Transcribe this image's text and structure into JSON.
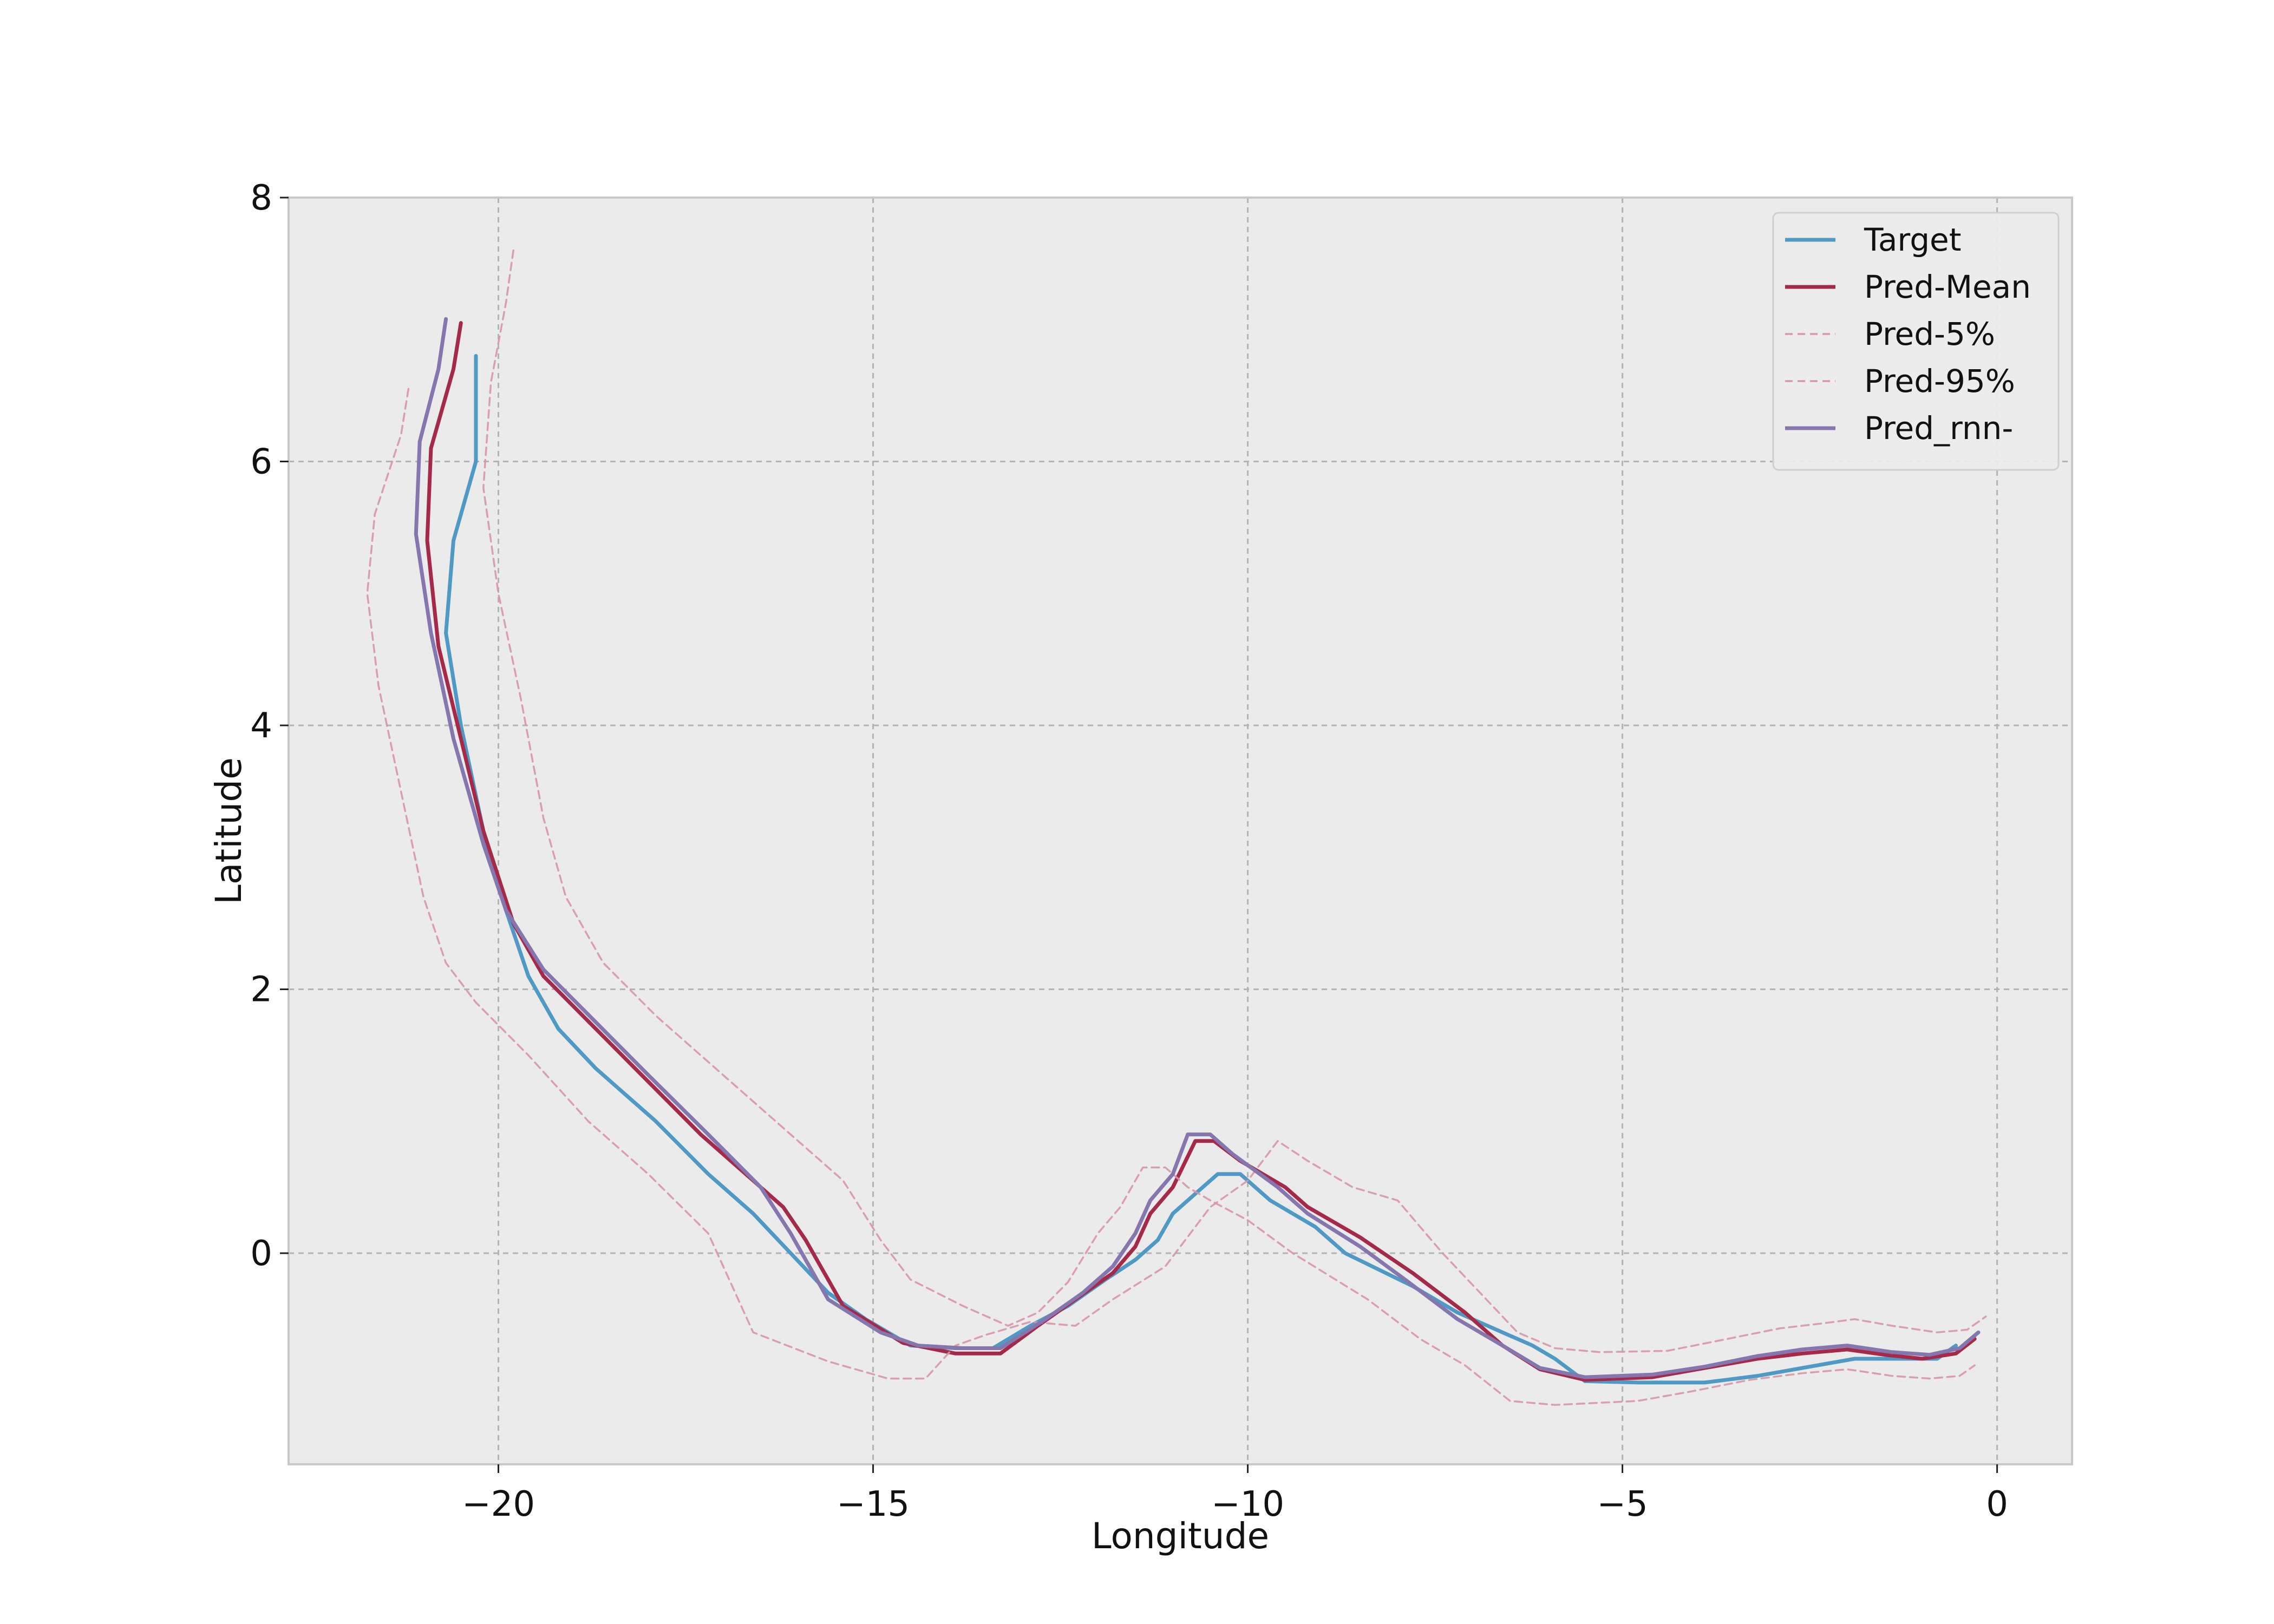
{
  "chart_data": {
    "type": "line",
    "title": "",
    "xlabel": "Longitude",
    "ylabel": "Latitude",
    "xlim": [
      -22.8,
      1.0
    ],
    "ylim": [
      -1.6,
      8.0
    ],
    "x_ticks": [
      -20,
      -15,
      -10,
      -5,
      0
    ],
    "x_tick_labels": [
      "−20",
      "−15",
      "−10",
      "−5",
      "0"
    ],
    "y_ticks": [
      0,
      2,
      4,
      6,
      8
    ],
    "y_tick_labels": [
      "0",
      "2",
      "4",
      "6",
      "8"
    ],
    "grid": true,
    "legend_position": "top-right",
    "background": "#ebebeb",
    "series": [
      {
        "name": "Target",
        "color": "#4f9ac4",
        "style": "solid",
        "points": [
          [
            -20.3,
            6.8
          ],
          [
            -20.3,
            6.0
          ],
          [
            -20.6,
            5.4
          ],
          [
            -20.7,
            4.7
          ],
          [
            -20.5,
            4.0
          ],
          [
            -20.2,
            3.2
          ],
          [
            -19.9,
            2.6
          ],
          [
            -19.6,
            2.1
          ],
          [
            -19.2,
            1.7
          ],
          [
            -18.7,
            1.4
          ],
          [
            -17.9,
            1.0
          ],
          [
            -17.2,
            0.6
          ],
          [
            -16.6,
            0.3
          ],
          [
            -16.1,
            0.0
          ],
          [
            -15.6,
            -0.3
          ],
          [
            -15.1,
            -0.5
          ],
          [
            -14.5,
            -0.7
          ],
          [
            -13.9,
            -0.72
          ],
          [
            -13.4,
            -0.72
          ],
          [
            -12.9,
            -0.55
          ],
          [
            -12.4,
            -0.4
          ],
          [
            -11.9,
            -0.2
          ],
          [
            -11.5,
            -0.05
          ],
          [
            -11.2,
            0.1
          ],
          [
            -11.0,
            0.3
          ],
          [
            -10.7,
            0.45
          ],
          [
            -10.4,
            0.6
          ],
          [
            -10.1,
            0.6
          ],
          [
            -9.7,
            0.4
          ],
          [
            -9.1,
            0.2
          ],
          [
            -8.7,
            0.0
          ],
          [
            -7.8,
            -0.25
          ],
          [
            -7.2,
            -0.45
          ],
          [
            -6.6,
            -0.6
          ],
          [
            -6.2,
            -0.7
          ],
          [
            -5.9,
            -0.8
          ],
          [
            -5.5,
            -0.97
          ],
          [
            -4.8,
            -0.98
          ],
          [
            -3.9,
            -0.98
          ],
          [
            -3.2,
            -0.93
          ],
          [
            -2.6,
            -0.87
          ],
          [
            -1.9,
            -0.8
          ],
          [
            -1.3,
            -0.8
          ],
          [
            -0.8,
            -0.8
          ],
          [
            -0.55,
            -0.7
          ]
        ]
      },
      {
        "name": "Pred-Mean",
        "color": "#a52a4a",
        "style": "solid",
        "points": [
          [
            -20.5,
            7.05
          ],
          [
            -20.6,
            6.7
          ],
          [
            -20.9,
            6.1
          ],
          [
            -20.95,
            5.4
          ],
          [
            -20.8,
            4.6
          ],
          [
            -20.5,
            3.9
          ],
          [
            -20.2,
            3.2
          ],
          [
            -19.8,
            2.5
          ],
          [
            -19.4,
            2.1
          ],
          [
            -18.7,
            1.7
          ],
          [
            -18.0,
            1.3
          ],
          [
            -17.3,
            0.9
          ],
          [
            -16.5,
            0.5
          ],
          [
            -16.2,
            0.35
          ],
          [
            -15.9,
            0.1
          ],
          [
            -15.4,
            -0.4
          ],
          [
            -14.6,
            -0.68
          ],
          [
            -13.9,
            -0.76
          ],
          [
            -13.3,
            -0.76
          ],
          [
            -12.8,
            -0.55
          ],
          [
            -12.3,
            -0.35
          ],
          [
            -11.8,
            -0.15
          ],
          [
            -11.5,
            0.05
          ],
          [
            -11.3,
            0.3
          ],
          [
            -11.0,
            0.5
          ],
          [
            -10.7,
            0.85
          ],
          [
            -10.45,
            0.85
          ],
          [
            -10.1,
            0.7
          ],
          [
            -9.5,
            0.5
          ],
          [
            -9.2,
            0.35
          ],
          [
            -8.5,
            0.12
          ],
          [
            -7.8,
            -0.15
          ],
          [
            -7.1,
            -0.45
          ],
          [
            -6.6,
            -0.7
          ],
          [
            -6.1,
            -0.88
          ],
          [
            -5.5,
            -0.96
          ],
          [
            -4.6,
            -0.94
          ],
          [
            -3.9,
            -0.87
          ],
          [
            -3.2,
            -0.8
          ],
          [
            -2.6,
            -0.76
          ],
          [
            -2.0,
            -0.73
          ],
          [
            -1.5,
            -0.77
          ],
          [
            -1.0,
            -0.8
          ],
          [
            -0.55,
            -0.76
          ],
          [
            -0.3,
            -0.65
          ]
        ]
      },
      {
        "name": "Pred-5%",
        "color": "#d797a5",
        "style": "dashed",
        "points": [
          [
            -21.2,
            6.55
          ],
          [
            -21.3,
            6.2
          ],
          [
            -21.65,
            5.6
          ],
          [
            -21.75,
            5.0
          ],
          [
            -21.6,
            4.3
          ],
          [
            -21.3,
            3.5
          ],
          [
            -21.0,
            2.7
          ],
          [
            -20.7,
            2.2
          ],
          [
            -20.3,
            1.9
          ],
          [
            -19.6,
            1.5
          ],
          [
            -18.8,
            1.0
          ],
          [
            -18.0,
            0.6
          ],
          [
            -17.2,
            0.15
          ],
          [
            -16.6,
            -0.6
          ],
          [
            -15.6,
            -0.82
          ],
          [
            -14.8,
            -0.95
          ],
          [
            -14.3,
            -0.95
          ],
          [
            -13.9,
            -0.7
          ],
          [
            -13.5,
            -0.62
          ],
          [
            -12.9,
            -0.52
          ],
          [
            -12.3,
            -0.55
          ],
          [
            -11.8,
            -0.35
          ],
          [
            -11.1,
            -0.1
          ],
          [
            -10.9,
            0.05
          ],
          [
            -10.5,
            0.35
          ],
          [
            -10.0,
            0.55
          ],
          [
            -9.6,
            0.85
          ],
          [
            -9.2,
            0.7
          ],
          [
            -8.6,
            0.5
          ],
          [
            -8.0,
            0.4
          ],
          [
            -7.4,
            0.0
          ],
          [
            -6.9,
            -0.3
          ],
          [
            -6.4,
            -0.6
          ],
          [
            -5.9,
            -0.72
          ],
          [
            -5.3,
            -0.75
          ],
          [
            -4.4,
            -0.74
          ],
          [
            -3.6,
            -0.65
          ],
          [
            -2.9,
            -0.57
          ],
          [
            -2.3,
            -0.53
          ],
          [
            -1.9,
            -0.5
          ],
          [
            -1.4,
            -0.55
          ],
          [
            -0.8,
            -0.6
          ],
          [
            -0.4,
            -0.58
          ],
          [
            -0.15,
            -0.48
          ]
        ]
      },
      {
        "name": "Pred-95%",
        "color": "#d797a5",
        "style": "dashed",
        "points": [
          [
            -19.8,
            7.6
          ],
          [
            -19.9,
            7.2
          ],
          [
            -20.1,
            6.6
          ],
          [
            -20.2,
            5.8
          ],
          [
            -20.0,
            5.0
          ],
          [
            -19.7,
            4.2
          ],
          [
            -19.4,
            3.3
          ],
          [
            -19.1,
            2.7
          ],
          [
            -18.6,
            2.2
          ],
          [
            -17.9,
            1.8
          ],
          [
            -17.1,
            1.4
          ],
          [
            -16.3,
            1.0
          ],
          [
            -15.4,
            0.55
          ],
          [
            -14.9,
            0.1
          ],
          [
            -14.5,
            -0.2
          ],
          [
            -13.8,
            -0.4
          ],
          [
            -13.2,
            -0.55
          ],
          [
            -12.8,
            -0.45
          ],
          [
            -12.4,
            -0.22
          ],
          [
            -12.0,
            0.15
          ],
          [
            -11.7,
            0.35
          ],
          [
            -11.4,
            0.65
          ],
          [
            -11.1,
            0.65
          ],
          [
            -10.8,
            0.5
          ],
          [
            -10.5,
            0.4
          ],
          [
            -10.0,
            0.25
          ],
          [
            -9.4,
            0.0
          ],
          [
            -8.4,
            -0.35
          ],
          [
            -7.7,
            -0.65
          ],
          [
            -7.1,
            -0.85
          ],
          [
            -6.5,
            -1.12
          ],
          [
            -5.9,
            -1.15
          ],
          [
            -4.8,
            -1.12
          ],
          [
            -4.1,
            -1.05
          ],
          [
            -3.3,
            -0.96
          ],
          [
            -2.6,
            -0.91
          ],
          [
            -2.0,
            -0.88
          ],
          [
            -1.4,
            -0.93
          ],
          [
            -0.9,
            -0.95
          ],
          [
            -0.5,
            -0.93
          ],
          [
            -0.3,
            -0.85
          ]
        ]
      },
      {
        "name": "Pred_rnn-",
        "color": "#8676ae",
        "style": "solid",
        "points": [
          [
            -20.7,
            7.08
          ],
          [
            -20.8,
            6.7
          ],
          [
            -21.05,
            6.15
          ],
          [
            -21.1,
            5.45
          ],
          [
            -20.9,
            4.7
          ],
          [
            -20.6,
            3.9
          ],
          [
            -20.2,
            3.1
          ],
          [
            -19.9,
            2.6
          ],
          [
            -19.4,
            2.15
          ],
          [
            -18.7,
            1.75
          ],
          [
            -18.0,
            1.35
          ],
          [
            -17.2,
            0.9
          ],
          [
            -16.5,
            0.5
          ],
          [
            -16.1,
            0.15
          ],
          [
            -15.6,
            -0.35
          ],
          [
            -14.9,
            -0.6
          ],
          [
            -14.4,
            -0.7
          ],
          [
            -13.8,
            -0.72
          ],
          [
            -13.3,
            -0.72
          ],
          [
            -12.7,
            -0.5
          ],
          [
            -12.2,
            -0.3
          ],
          [
            -11.8,
            -0.1
          ],
          [
            -11.5,
            0.15
          ],
          [
            -11.3,
            0.4
          ],
          [
            -11.0,
            0.6
          ],
          [
            -10.8,
            0.9
          ],
          [
            -10.5,
            0.9
          ],
          [
            -10.2,
            0.75
          ],
          [
            -9.6,
            0.5
          ],
          [
            -9.2,
            0.3
          ],
          [
            -8.5,
            0.05
          ],
          [
            -7.9,
            -0.2
          ],
          [
            -7.2,
            -0.5
          ],
          [
            -6.6,
            -0.7
          ],
          [
            -6.1,
            -0.87
          ],
          [
            -5.5,
            -0.94
          ],
          [
            -4.6,
            -0.92
          ],
          [
            -3.9,
            -0.86
          ],
          [
            -3.2,
            -0.78
          ],
          [
            -2.6,
            -0.73
          ],
          [
            -2.0,
            -0.7
          ],
          [
            -1.4,
            -0.75
          ],
          [
            -0.9,
            -0.77
          ],
          [
            -0.5,
            -0.72
          ],
          [
            -0.25,
            -0.6
          ]
        ]
      }
    ]
  }
}
